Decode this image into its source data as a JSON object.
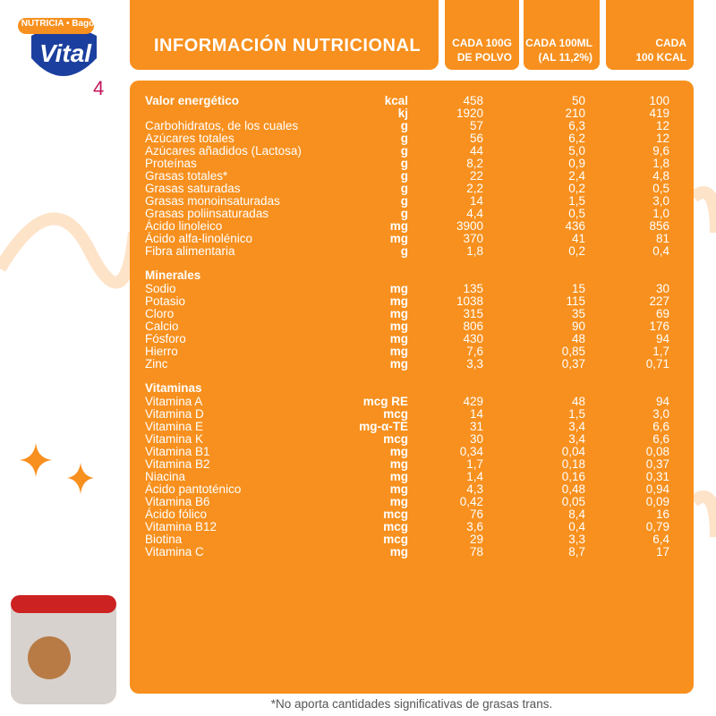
{
  "brand": {
    "maker": "NUTRICIA • Bagó",
    "name": "Vital",
    "stage": "4"
  },
  "header": {
    "title": "INFORMACIÓN NUTRICIONAL",
    "columns": [
      [
        "CADA 100G",
        "DE POLVO"
      ],
      [
        "CADA 100ML",
        "(AL 11,2%)"
      ],
      [
        "CADA",
        "100 KCAL"
      ]
    ]
  },
  "table": {
    "sections": [
      {
        "rows": [
          [
            "Valor energético",
            "kcal",
            "458",
            "50",
            "100"
          ],
          [
            null,
            "kj",
            "1920",
            "210",
            "419"
          ],
          [
            "Carbohidratos, de los cuales",
            "g",
            "57",
            "6,3",
            "12"
          ],
          [
            "Azúcares totales",
            "g",
            "56",
            "6,2",
            "12"
          ],
          [
            "Azúcares añadidos (Lactosa)",
            "g",
            "44",
            "5,0",
            "9,6"
          ],
          [
            "Proteínas",
            "g",
            "8,2",
            "0,9",
            "1,8"
          ],
          [
            "Grasas totales*",
            "g",
            "22",
            "2,4",
            "4,8"
          ],
          [
            "Grasas saturadas",
            "g",
            "2,2",
            "0,2",
            "0,5"
          ],
          [
            "Grasas monoinsaturadas",
            "g",
            "14",
            "1,5",
            "3,0"
          ],
          [
            "Grasas poliinsaturadas",
            "g",
            "4,4",
            "0,5",
            "1,0"
          ],
          [
            "Ácido linoleico",
            "mg",
            "3900",
            "436",
            "856"
          ],
          [
            "Ácido alfa-linolénico",
            "mg",
            "370",
            "41",
            "81"
          ],
          [
            "Fibra alimentaria",
            "g",
            "1,8",
            "0,2",
            "0,4"
          ]
        ]
      },
      {
        "title": "Minerales",
        "rows": [
          [
            "Sodio",
            "mg",
            "135",
            "15",
            "30"
          ],
          [
            "Potasio",
            "mg",
            "1038",
            "115",
            "227"
          ],
          [
            "Cloro",
            "mg",
            "315",
            "35",
            "69"
          ],
          [
            "Calcio",
            "mg",
            "806",
            "90",
            "176"
          ],
          [
            "Fósforo",
            "mg",
            "430",
            "48",
            "94"
          ],
          [
            "Hierro",
            "mg",
            "7,6",
            "0,85",
            "1,7"
          ],
          [
            "Zinc",
            "mg",
            "3,3",
            "0,37",
            "0,71"
          ]
        ]
      },
      {
        "title": "Vitaminas",
        "rows": [
          [
            "Vitamina A",
            "mcg RE",
            "429",
            "48",
            "94"
          ],
          [
            "Vitamina D",
            "mcg",
            "14",
            "1,5",
            "3,0"
          ],
          [
            "Vitamina E",
            "mg-α-TE",
            "31",
            "3,4",
            "6,6"
          ],
          [
            "Vitamina K",
            "mcg",
            "30",
            "3,4",
            "6,6"
          ],
          [
            "Vitamina B1",
            "mg",
            "0,34",
            "0,04",
            "0,08"
          ],
          [
            "Vitamina B2",
            "mg",
            "1,7",
            "0,18",
            "0,37"
          ],
          [
            "Niacina",
            "mg",
            "1,4",
            "0,16",
            "0,31"
          ],
          [
            "Ácido pantoténico",
            "mg",
            "4,3",
            "0,48",
            "0,94"
          ],
          [
            "Vitamina B6",
            "mg",
            "0,42",
            "0,05",
            "0,09"
          ],
          [
            "Ácido fólico",
            "mcg",
            "76",
            "8,4",
            "16"
          ],
          [
            "Vitamina B12",
            "mcg",
            "3,6",
            "0,4",
            "0,79"
          ],
          [
            "Biotina",
            "mcg",
            "29",
            "3,3",
            "6,4"
          ],
          [
            "Vitamina C",
            "mg",
            "78",
            "8,7",
            "17"
          ]
        ]
      }
    ]
  },
  "footnote": "*No aporta cantidades significativas de grasas trans."
}
